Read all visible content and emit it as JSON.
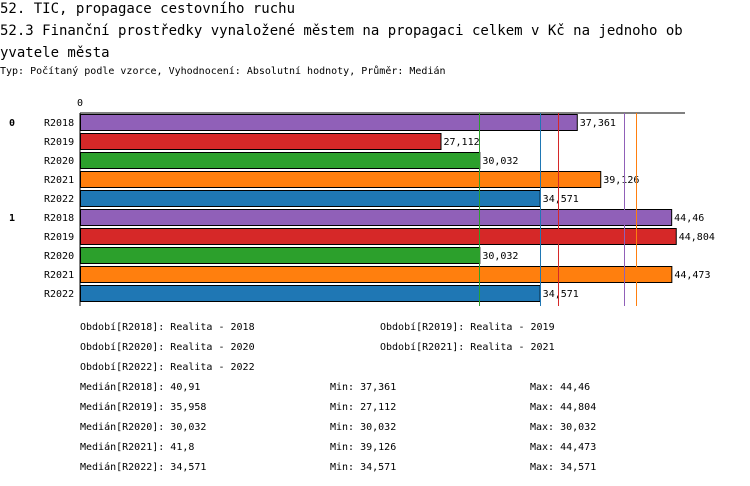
{
  "header": {
    "line1": "52. TIC, propagace cestovního ruchu",
    "line2": "52.3 Finanční prostředky vynaložené městem na propagaci celkem v Kč na jednoho ob",
    "line3": "yvatele města",
    "subtitle": "Typ: Počítaný podle vzorce, Vyhodnocení: Absolutní hodnoty, Průměr: Medián"
  },
  "chart_data": {
    "type": "bar",
    "orientation": "horizontal",
    "xlim": [
      0,
      45.5
    ],
    "axis_zero_label": "0",
    "group_labels": [
      "0",
      "1"
    ],
    "categories": [
      "R2018",
      "R2019",
      "R2020",
      "R2021",
      "R2022"
    ],
    "colors": [
      "#9060b8",
      "#d62828",
      "#2ca02c",
      "#ff7f0e",
      "#1f77b4"
    ],
    "groups": [
      {
        "label": "0",
        "values": [
          37.361,
          27.112,
          30.032,
          39.126,
          34.571
        ],
        "value_labels": [
          "37,361",
          "27,112",
          "30,032",
          "39,126",
          "34,571"
        ]
      },
      {
        "label": "1",
        "values": [
          44.46,
          44.804,
          30.032,
          44.473,
          34.571
        ],
        "value_labels": [
          "44,46",
          "44,804",
          "30,032",
          "44,473",
          "34,571"
        ]
      }
    ],
    "reference_lines": [
      {
        "series": "R2018",
        "value": 40.91,
        "color": "#9060b8"
      },
      {
        "series": "R2019",
        "value": 35.958,
        "color": "#d62828"
      },
      {
        "series": "R2020",
        "value": 30.032,
        "color": "#2ca02c"
      },
      {
        "series": "R2021",
        "value": 41.8,
        "color": "#ff7f0e"
      },
      {
        "series": "R2022",
        "value": 34.571,
        "color": "#1f77b4"
      }
    ]
  },
  "legend": {
    "periods": [
      "Období[R2018]: Realita - 2018",
      "Období[R2019]: Realita - 2019",
      "Období[R2020]: Realita - 2020",
      "Období[R2021]: Realita - 2021",
      "Období[R2022]: Realita - 2022"
    ],
    "stats": [
      {
        "median": "Medián[R2018]: 40,91",
        "min": "Min: 37,361",
        "max": "Max: 44,46"
      },
      {
        "median": "Medián[R2019]: 35,958",
        "min": "Min: 27,112",
        "max": "Max: 44,804"
      },
      {
        "median": "Medián[R2020]: 30,032",
        "min": "Min: 30,032",
        "max": "Max: 30,032"
      },
      {
        "median": "Medián[R2021]: 41,8",
        "min": "Min: 39,126",
        "max": "Max: 44,473"
      },
      {
        "median": "Medián[R2022]: 34,571",
        "min": "Min: 34,571",
        "max": "Max: 34,571"
      }
    ]
  }
}
